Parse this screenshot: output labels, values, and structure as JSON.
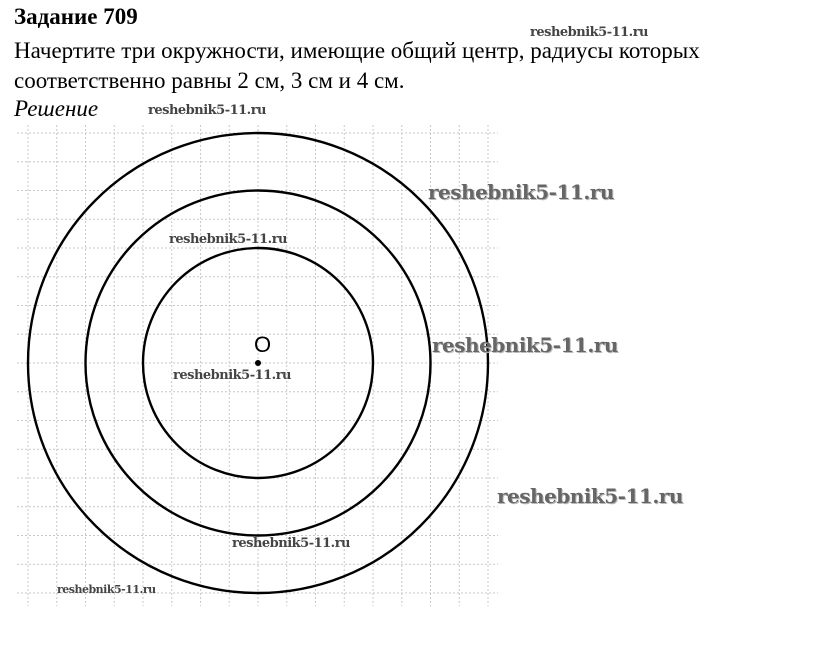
{
  "heading": "Задание 709",
  "task_text": "Начертите три окружности, имеющие общий центр, радиусы которых соответственно равны 2 см, 3 см и 4 см.",
  "solution_label": "Решение",
  "diagram": {
    "center_label": "O",
    "radii_cm": [
      2,
      3,
      4
    ],
    "grid": true
  },
  "watermarks": [
    "reshebnik5-11.ru",
    "reshebnik5-11.ru",
    "reshebnik5-11.ru",
    "reshebnik5-11.ru",
    "reshebnik5-11.ru",
    "reshebnik5-11.ru",
    "reshebnik5-11.ru",
    "reshebnik5-11.ru",
    "reshebnik5-11.ru"
  ]
}
